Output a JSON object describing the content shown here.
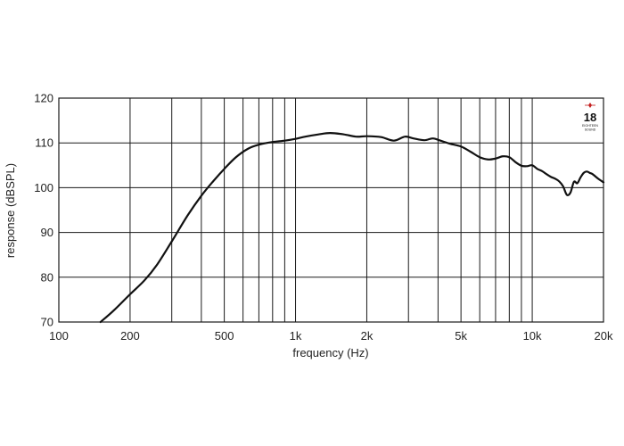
{
  "chart_data": {
    "type": "line",
    "title": "",
    "xlabel": "frequency (Hz)",
    "ylabel": "response (dBSPL)",
    "x_scale": "log",
    "xlim": [
      100,
      20000
    ],
    "ylim": [
      70,
      120
    ],
    "x_ticks": [
      {
        "value": 100,
        "label": "100"
      },
      {
        "value": 200,
        "label": "200"
      },
      {
        "value": 500,
        "label": "500"
      },
      {
        "value": 1000,
        "label": "1k"
      },
      {
        "value": 2000,
        "label": "2k"
      },
      {
        "value": 5000,
        "label": "5k"
      },
      {
        "value": 10000,
        "label": "10k"
      },
      {
        "value": 20000,
        "label": "20k"
      }
    ],
    "y_ticks": [
      70,
      80,
      90,
      100,
      110,
      120
    ],
    "grid": true,
    "legend": "none",
    "series": [
      {
        "color": "#111111",
        "x": [
          150,
          170,
          200,
          230,
          260,
          300,
          350,
          400,
          450,
          500,
          560,
          630,
          700,
          800,
          900,
          1000,
          1100,
          1250,
          1400,
          1600,
          1800,
          2000,
          2300,
          2600,
          2900,
          3150,
          3500,
          3800,
          4100,
          4500,
          5000,
          5500,
          6000,
          6500,
          7000,
          7500,
          8000,
          8500,
          9000,
          9500,
          10000,
          10500,
          11000,
          11500,
          12000,
          12500,
          13000,
          13500,
          14000,
          14500,
          15000,
          15500,
          16000,
          16500,
          17000,
          17500,
          18000,
          19000,
          20000
        ],
        "y": [
          70,
          72.5,
          76.2,
          79.3,
          82.8,
          88.0,
          93.8,
          98.2,
          101.5,
          104.2,
          106.8,
          108.7,
          109.6,
          110.2,
          110.5,
          110.9,
          111.4,
          111.9,
          112.2,
          111.9,
          111.4,
          111.5,
          111.3,
          110.5,
          111.4,
          111.0,
          110.6,
          111.0,
          110.5,
          109.8,
          109.2,
          108.0,
          106.8,
          106.3,
          106.5,
          107.0,
          106.8,
          105.7,
          104.9,
          104.8,
          105.0,
          104.2,
          103.7,
          103.0,
          102.4,
          102.0,
          101.4,
          100.3,
          98.4,
          98.9,
          101.3,
          101.0,
          102.3,
          103.3,
          103.6,
          103.3,
          103.0,
          102.0,
          101.2
        ]
      }
    ]
  },
  "logo": {
    "number": "18",
    "line1": "EIGHTEEN",
    "line2": "SOUND"
  }
}
